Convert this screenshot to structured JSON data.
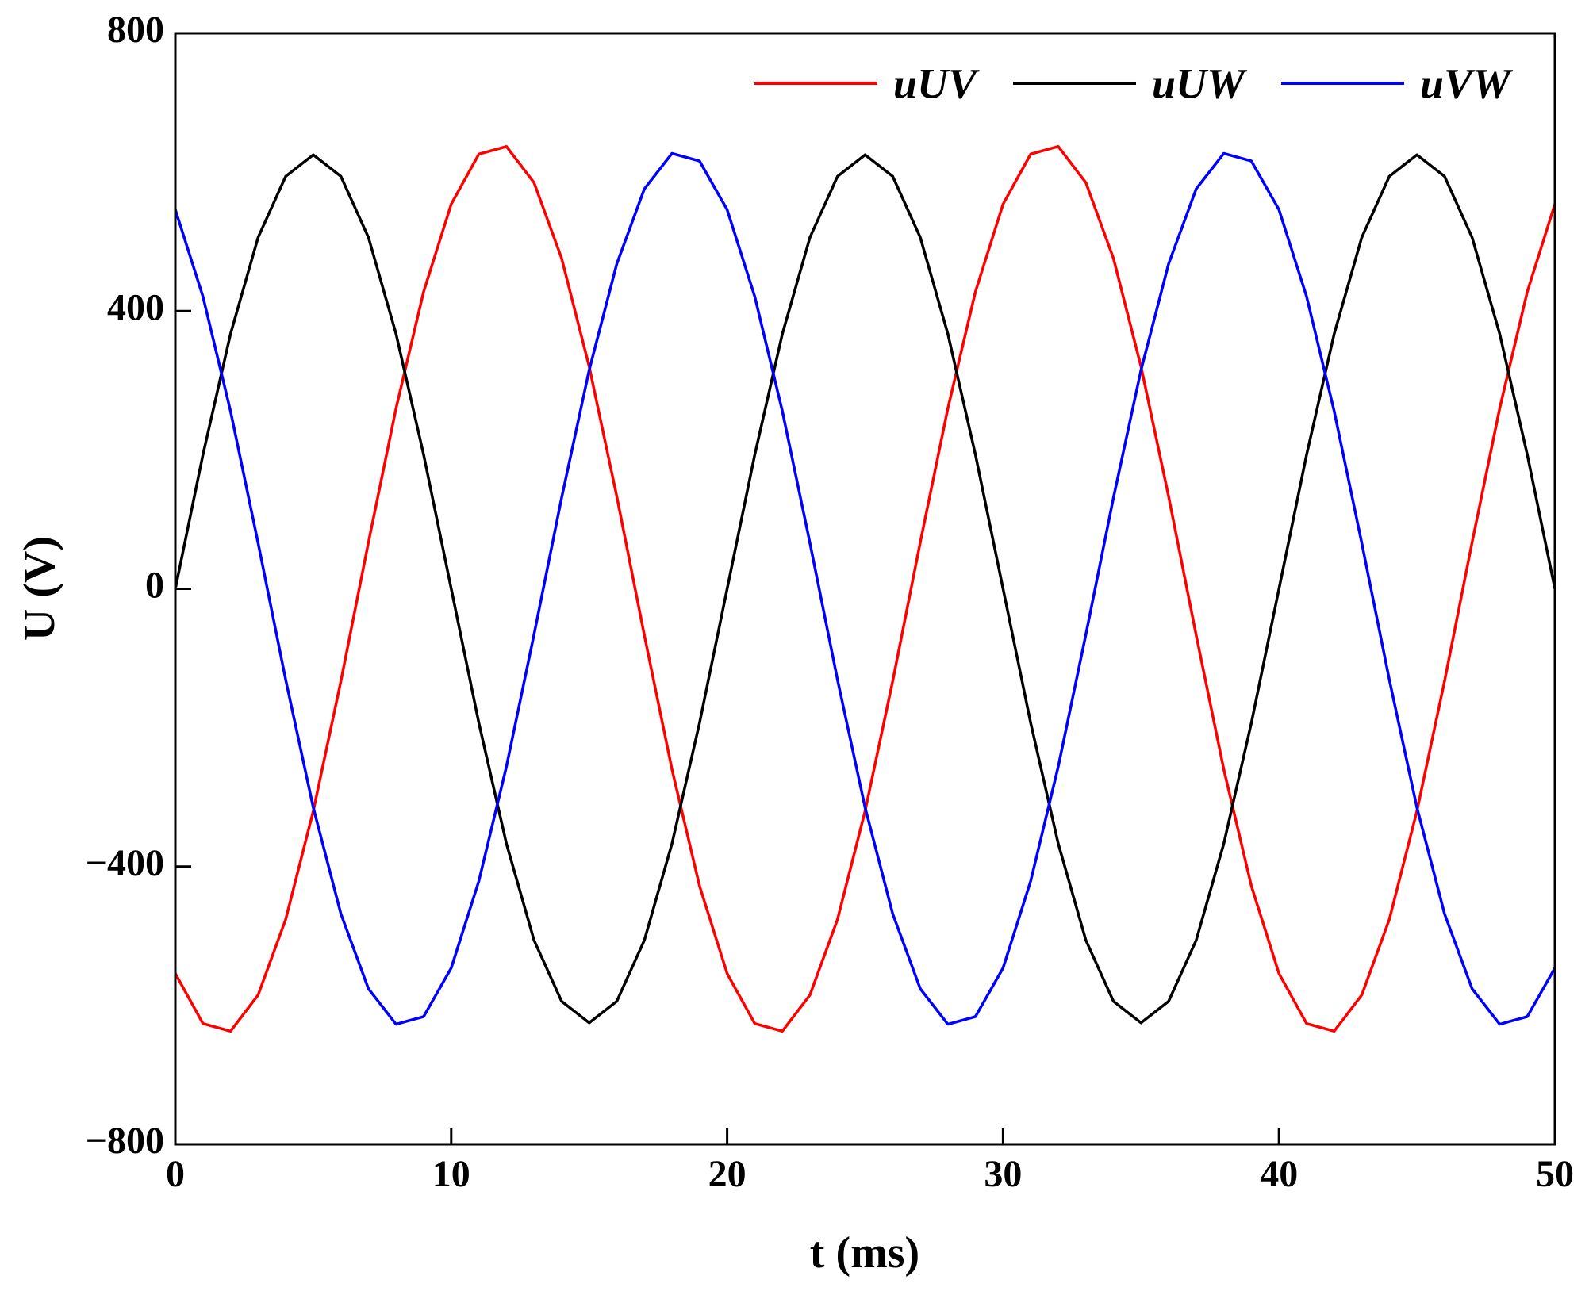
{
  "chart_data": {
    "type": "line",
    "x_label": "t (ms)",
    "y_label": "U (V)",
    "x": [
      0,
      1,
      2,
      3,
      4,
      5,
      6,
      7,
      8,
      9,
      10,
      11,
      12,
      13,
      14,
      15,
      16,
      17,
      18,
      19,
      20,
      21,
      22,
      23,
      24,
      25,
      26,
      27,
      28,
      29,
      30,
      31,
      32,
      33,
      34,
      35,
      36,
      37,
      38,
      39,
      40,
      41,
      42,
      43,
      44,
      45,
      46,
      47,
      48,
      49,
      50
    ],
    "series": [
      {
        "name": "uUV",
        "color": "#ff0000",
        "values": [
          -554,
          -626,
          -637,
          -585,
          -476,
          -320,
          -133,
          67,
          260,
          428,
          554,
          626,
          637,
          585,
          476,
          320,
          133,
          -67,
          -260,
          -428,
          -554,
          -626,
          -637,
          -585,
          -476,
          -320,
          -133,
          67,
          260,
          428,
          554,
          626,
          637,
          585,
          476,
          320,
          133,
          -67,
          -260,
          -428,
          -554,
          -626,
          -637,
          -585,
          -476,
          -320,
          -133,
          67,
          260,
          428,
          554
        ]
      },
      {
        "name": "uUW",
        "color": "#000000",
        "values": [
          0,
          193,
          367,
          506,
          594,
          625,
          594,
          506,
          367,
          193,
          0,
          -193,
          -367,
          -506,
          -594,
          -625,
          -594,
          -506,
          -367,
          -193,
          0,
          193,
          367,
          506,
          594,
          625,
          594,
          506,
          367,
          193,
          0,
          -193,
          -367,
          -506,
          -594,
          -625,
          -594,
          -506,
          -367,
          -193,
          0,
          193,
          367,
          506,
          594,
          625,
          594,
          506,
          367,
          193,
          0
        ]
      },
      {
        "name": "uVW",
        "color": "#0000ff",
        "values": [
          546,
          421,
          256,
          66,
          -131,
          -315,
          -468,
          -576,
          -627,
          -616,
          -546,
          -421,
          -256,
          -66,
          131,
          315,
          468,
          576,
          627,
          616,
          546,
          421,
          256,
          66,
          -131,
          -315,
          -468,
          -576,
          -627,
          -616,
          -546,
          -421,
          -256,
          -66,
          131,
          315,
          468,
          576,
          627,
          616,
          546,
          421,
          256,
          66,
          -131,
          -315,
          -468,
          -576,
          -627,
          -616,
          -546
        ]
      }
    ],
    "xlim": [
      0,
      50
    ],
    "xticks": [
      0,
      10,
      20,
      30,
      40,
      50
    ],
    "ylim": [
      -800,
      800
    ],
    "yticks": [
      {
        "value": -800,
        "label": "−800"
      },
      {
        "value": -400,
        "label": "−400"
      },
      0,
      400,
      800
    ],
    "legend": "top-right"
  }
}
